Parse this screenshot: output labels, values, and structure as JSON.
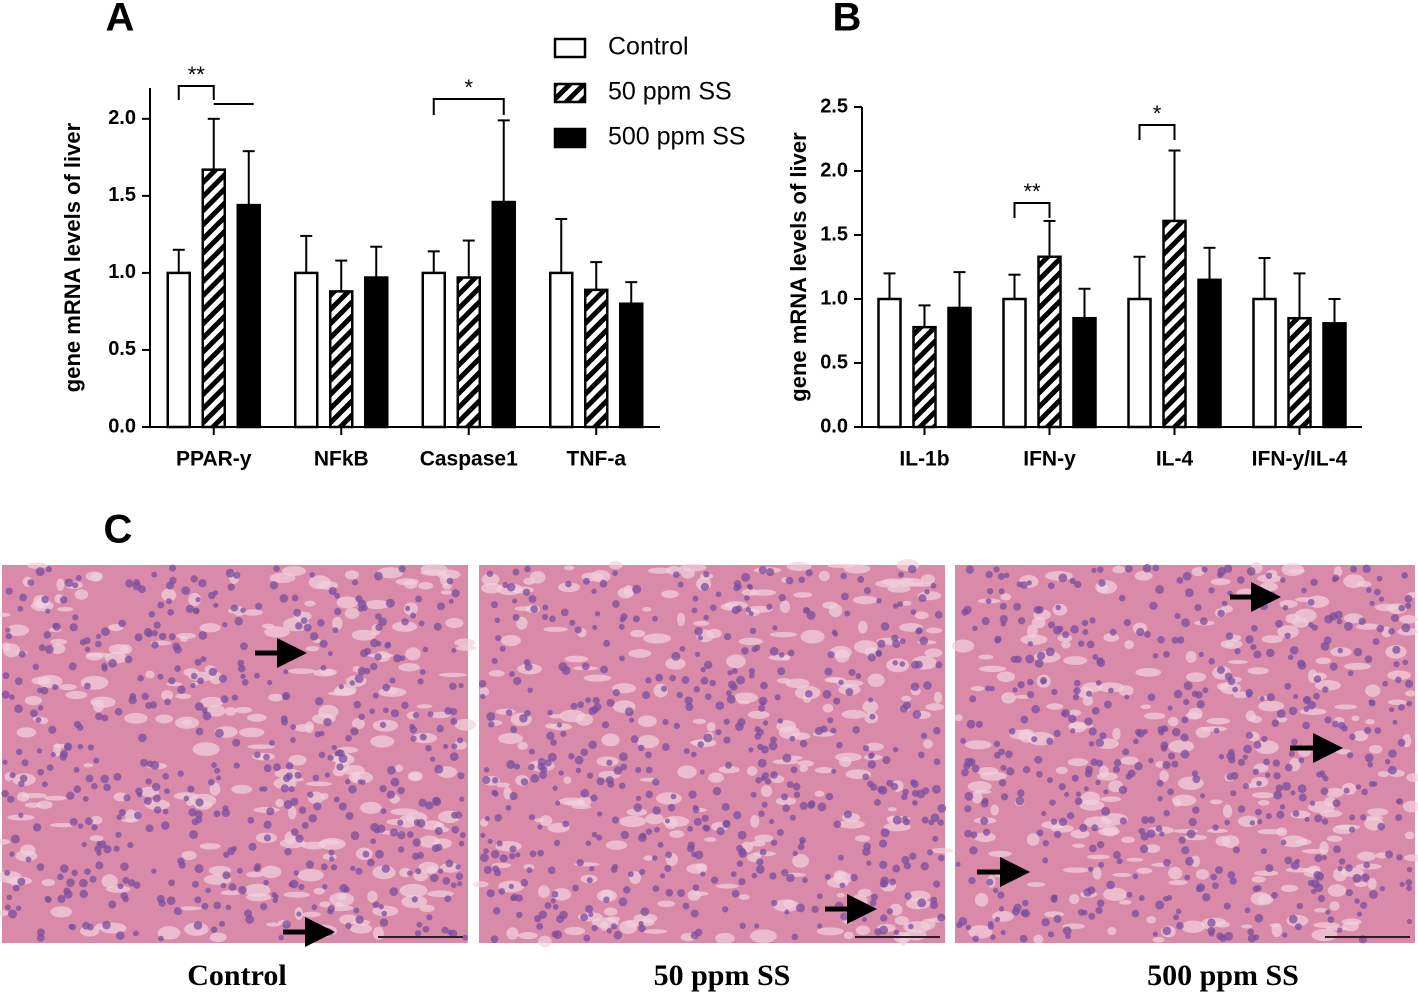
{
  "chart_data": [
    {
      "type": "bar",
      "panel": "A",
      "y_label": "gene mRNA levels of liver",
      "categories": [
        "PPAR-y",
        "NFkB",
        "Caspase1",
        "TNF-a"
      ],
      "series": [
        {
          "name": "Control",
          "color": "#000000",
          "fill_style": "open",
          "values": [
            1.0,
            1.0,
            1.0,
            1.0
          ],
          "errors": [
            0.15,
            0.24,
            0.14,
            0.35
          ]
        },
        {
          "name": "50 ppm SS",
          "color": "#000000",
          "fill_style": "hatched",
          "values": [
            1.67,
            0.88,
            0.97,
            0.89
          ],
          "errors": [
            0.33,
            0.2,
            0.24,
            0.18
          ]
        },
        {
          "name": "500 ppm SS",
          "color": "#000000",
          "fill_style": "solid",
          "values": [
            1.44,
            0.97,
            1.46,
            0.8
          ],
          "errors": [
            0.35,
            0.2,
            0.53,
            0.14
          ]
        }
      ],
      "annotations": [
        "**",
        "*"
      ],
      "ylim": [
        0,
        2.2
      ],
      "yticks": [
        {
          "value": 0,
          "label": "0.0"
        },
        0.5,
        {
          "value": 1,
          "label": "1.0"
        },
        1.5,
        {
          "value": 2,
          "label": "2.0"
        }
      ],
      "legend": "top-right",
      "grid": false
    },
    {
      "type": "bar",
      "panel": "B",
      "y_label": "gene mRNA levels of liver",
      "categories": [
        "IL-1b",
        "IFN-y",
        "IL-4",
        "IFN-y/IL-4"
      ],
      "series": [
        {
          "color": "#000000",
          "fill_style": "open",
          "values": [
            1.0,
            1.0,
            1.0,
            1.0
          ],
          "errors": [
            0.2,
            0.19,
            0.33,
            0.32
          ]
        },
        {
          "color": "#000000",
          "fill_style": "hatched",
          "values": [
            0.78,
            1.33,
            1.61,
            0.85
          ],
          "errors": [
            0.17,
            0.28,
            0.55,
            0.35
          ]
        },
        {
          "color": "#000000",
          "fill_style": "solid",
          "values": [
            0.93,
            0.85,
            1.15,
            0.81
          ],
          "errors": [
            0.28,
            0.23,
            0.25,
            0.19
          ]
        }
      ],
      "annotations": [
        "**",
        "*"
      ],
      "ylim": [
        0,
        2.5
      ],
      "yticks": [
        {
          "value": 0,
          "label": "0.0"
        },
        0.5,
        {
          "value": 1,
          "label": "1.0"
        },
        1.5,
        {
          "value": 2,
          "label": "2.0"
        },
        2.5
      ],
      "legend": false,
      "grid": false
    }
  ],
  "histology": {
    "panel": "C",
    "captions": [
      "Control",
      "50 ppm SS",
      "500 ppm SS"
    ]
  }
}
